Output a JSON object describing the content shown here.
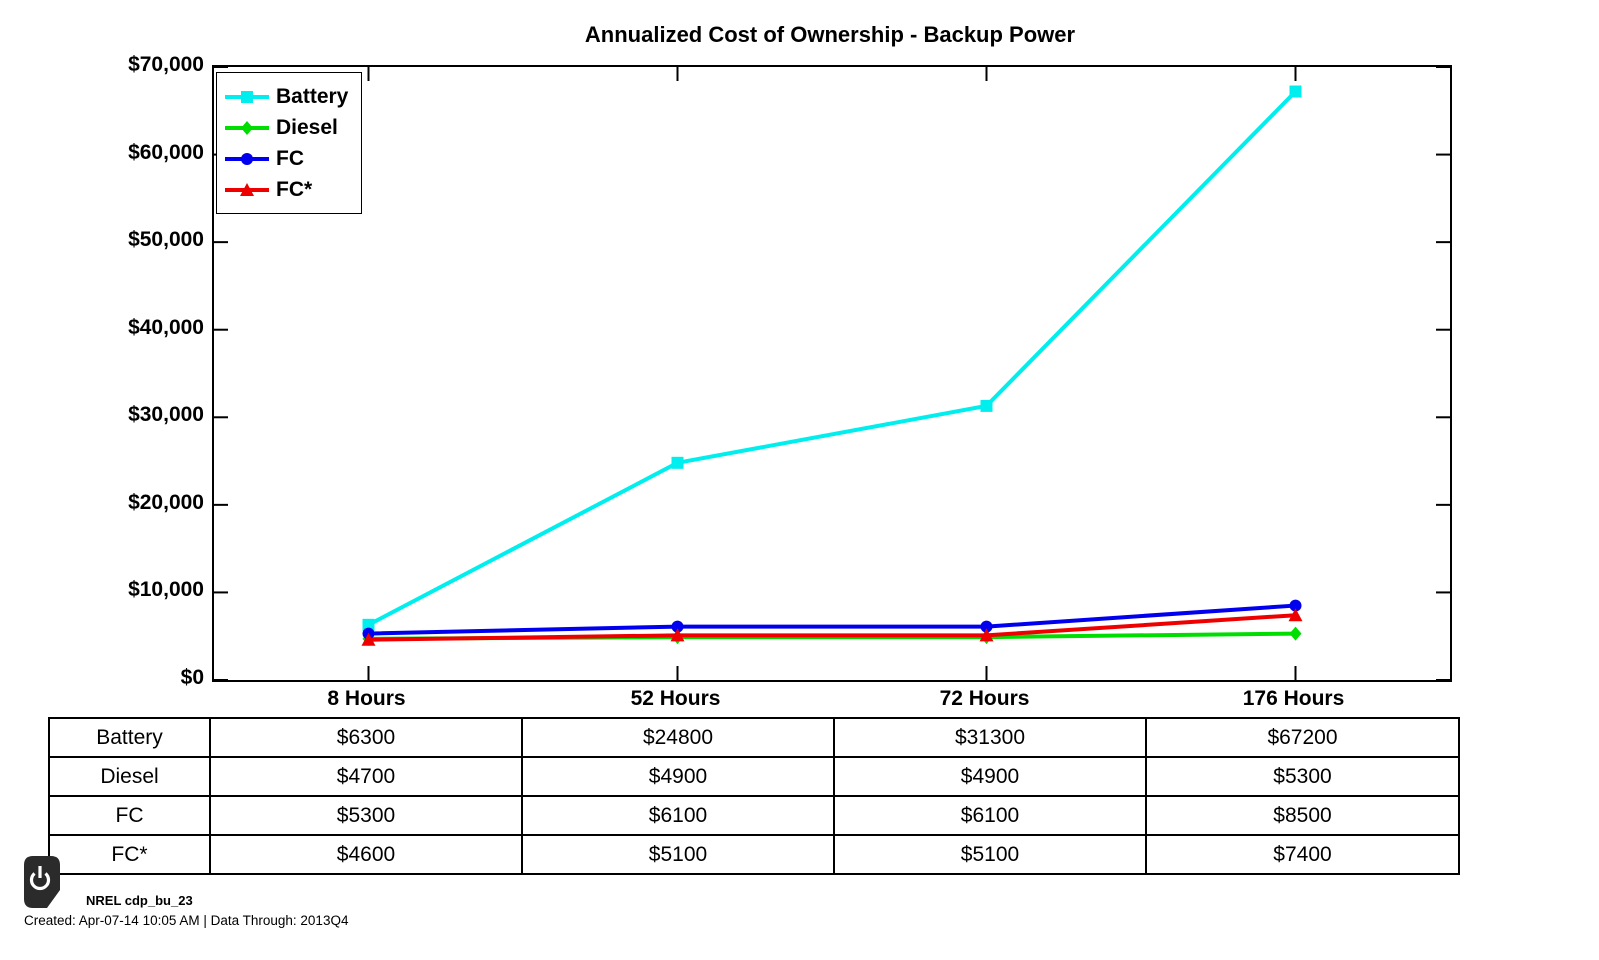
{
  "chart_data": {
    "type": "line",
    "title": "Annualized Cost of Ownership - Backup Power",
    "categories": [
      "8 Hours",
      "52 Hours",
      "72 Hours",
      "176 Hours"
    ],
    "series": [
      {
        "name": "Battery",
        "color": "#00EEEE",
        "marker": "square",
        "values": [
          6300,
          24800,
          31300,
          67200
        ]
      },
      {
        "name": "Diesel",
        "color": "#00DD00",
        "marker": "diamond",
        "values": [
          4700,
          4900,
          4900,
          5300
        ]
      },
      {
        "name": "FC",
        "color": "#0000EE",
        "marker": "circle",
        "values": [
          5300,
          6100,
          6100,
          8500
        ]
      },
      {
        "name": "FC*",
        "color": "#EE0000",
        "marker": "triangle",
        "values": [
          4600,
          5100,
          5100,
          7400
        ]
      }
    ],
    "ylim": [
      0,
      70000
    ],
    "y_ticks": {
      "values": [
        0,
        10000,
        20000,
        30000,
        40000,
        50000,
        60000,
        70000
      ],
      "labels": [
        "$0",
        "$10,000",
        "$20,000",
        "$30,000",
        "$40,000",
        "$50,000",
        "$60,000",
        "$70,000"
      ]
    },
    "xlabel": "",
    "ylabel": "",
    "grid": false,
    "legend_position": "top-left",
    "axis_color": "#000000"
  },
  "table": {
    "rows": [
      {
        "label": "Battery",
        "values": [
          "$6300",
          "$24800",
          "$31300",
          "$67200"
        ]
      },
      {
        "label": "Diesel",
        "values": [
          "$4700",
          "$4900",
          "$4900",
          "$5300"
        ]
      },
      {
        "label": "FC",
        "values": [
          "$5300",
          "$6100",
          "$6100",
          "$8500"
        ]
      },
      {
        "label": "FC*",
        "values": [
          "$4600",
          "$5100",
          "$5100",
          "$7400"
        ]
      }
    ]
  },
  "footer": {
    "source_label": "NREL cdp_bu_23",
    "created_line": "Created: Apr-07-14 10:05 AM | Data Through: 2013Q4",
    "badge_color": "#2b2b2b",
    "badge_glyph": "power-icon"
  }
}
